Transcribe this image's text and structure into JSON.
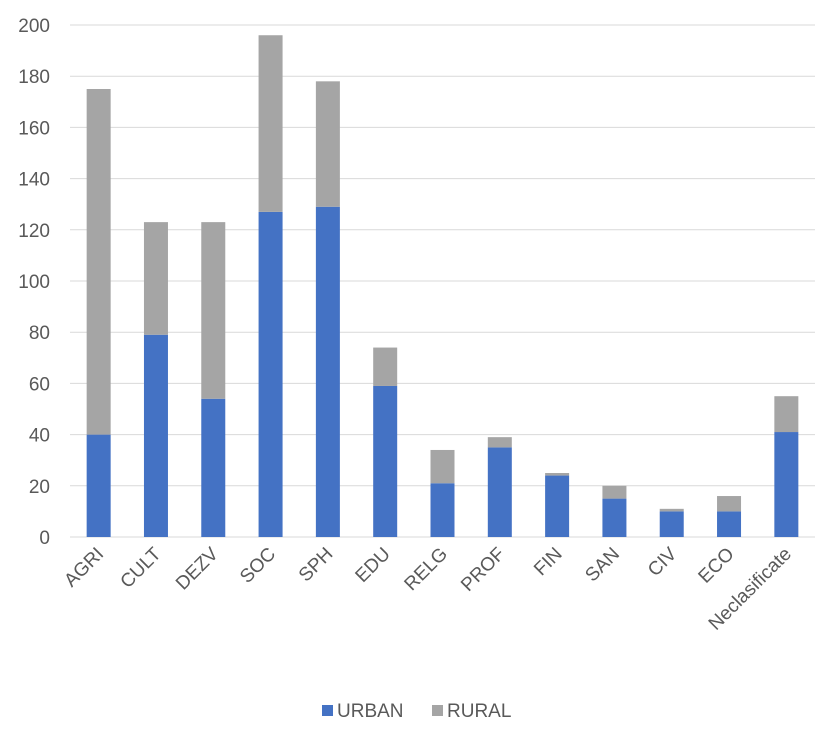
{
  "chart_data": {
    "type": "bar",
    "stacked": true,
    "title": "",
    "xlabel": "",
    "ylabel": "",
    "ylim": [
      0,
      200
    ],
    "yticks": [
      0,
      20,
      40,
      60,
      80,
      100,
      120,
      140,
      160,
      180,
      200
    ],
    "grid": true,
    "legend_position": "bottom",
    "categories": [
      "AGRI",
      "CULT",
      "DEZV",
      "SOC",
      "SPH",
      "EDU",
      "RELG",
      "PROF",
      "FIN",
      "SAN",
      "CIV",
      "ECO",
      "Neclasificate"
    ],
    "series": [
      {
        "name": "URBAN",
        "color": "#4472c4",
        "values": [
          40,
          79,
          54,
          127,
          129,
          59,
          21,
          35,
          24,
          15,
          10,
          10,
          41
        ]
      },
      {
        "name": "RURAL",
        "color": "#a5a5a5",
        "values": [
          135,
          44,
          69,
          69,
          49,
          15,
          13,
          4,
          1,
          5,
          1,
          6,
          14
        ]
      }
    ]
  }
}
